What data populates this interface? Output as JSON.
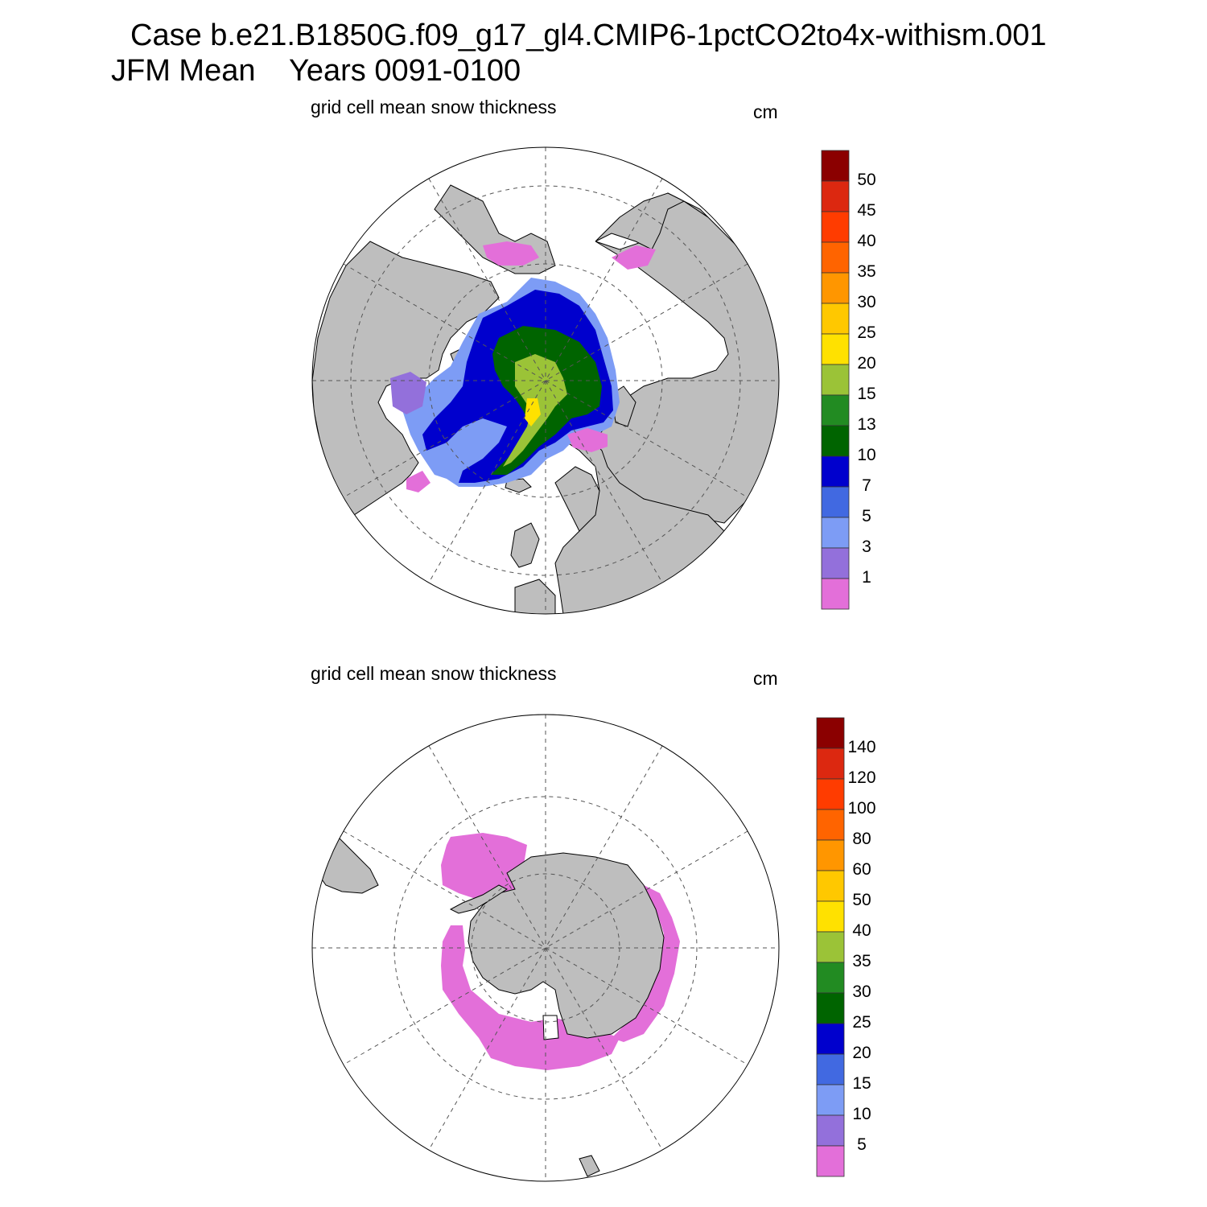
{
  "figure": {
    "title_line1": "Case b.e21.B1850G.f09_g17_gl4.CMIP6-1pctCO2to4x-withism.001",
    "title_line2": "JFM Mean    Years 0091-0100"
  },
  "panels": [
    {
      "id": "arctic",
      "title": "grid cell mean snow thickness",
      "units": "cm",
      "hemisphere": "north",
      "colorbar": {
        "labels": [
          "50",
          "45",
          "40",
          "35",
          "30",
          "25",
          "20",
          "15",
          "13",
          "10",
          "7",
          "5",
          "3",
          "1"
        ],
        "colors": [
          "#8b0000",
          "#dc2810",
          "#ff3c00",
          "#ff6400",
          "#ff9600",
          "#ffc800",
          "#ffe100",
          "#9bc337",
          "#228b22",
          "#006400",
          "#0000cd",
          "#4169e1",
          "#7d9cf5",
          "#9370db",
          "#e36fd9"
        ]
      }
    },
    {
      "id": "antarctic",
      "title": "grid cell mean snow thickness",
      "units": "cm",
      "hemisphere": "south",
      "colorbar": {
        "labels": [
          "140",
          "120",
          "100",
          "80",
          "60",
          "50",
          "40",
          "35",
          "30",
          "25",
          "20",
          "15",
          "10",
          "5"
        ],
        "colors": [
          "#8b0000",
          "#dc2810",
          "#ff3c00",
          "#ff6400",
          "#ff9600",
          "#ffc800",
          "#ffe100",
          "#9bc337",
          "#228b22",
          "#006400",
          "#0000cd",
          "#4169e1",
          "#7d9cf5",
          "#9370db",
          "#e36fd9"
        ]
      }
    }
  ],
  "colors": {
    "land": "#bebebe",
    "ocean": "#ffffff",
    "grid": "#555555"
  }
}
